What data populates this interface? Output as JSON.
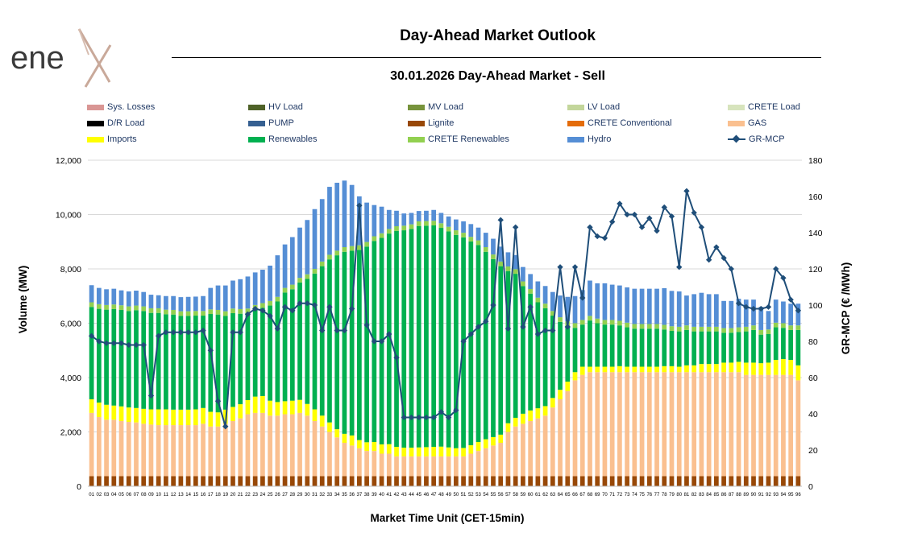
{
  "logo": {
    "text": "ene",
    "accent": "x"
  },
  "header": {
    "title": "Day-Ahead Market Outlook",
    "subtitle": "30.01.2026  Day-Ahead Market - Sell"
  },
  "chart_data": {
    "type": "bar",
    "stacked": true,
    "title": "Day-Ahead Market Outlook",
    "subtitle": "30.01.2026  Day-Ahead Market - Sell",
    "xlabel": "Market Time Unit (CET-15min)",
    "ylabel": "Volume (MW)",
    "y2label": "GR-MCP (€ /MWh)",
    "ylim": [
      0,
      12000
    ],
    "y2lim": [
      0,
      180
    ],
    "yticks": [
      0,
      2000,
      4000,
      6000,
      8000,
      10000,
      12000
    ],
    "y2ticks": [
      0,
      20,
      40,
      60,
      80,
      100,
      120,
      140,
      160,
      180
    ],
    "legend_position": "top",
    "categories": [
      "01",
      "02",
      "03",
      "04",
      "05",
      "06",
      "07",
      "08",
      "09",
      "10",
      "11",
      "12",
      "13",
      "14",
      "15",
      "16",
      "17",
      "18",
      "19",
      "20",
      "21",
      "22",
      "23",
      "24",
      "25",
      "26",
      "27",
      "28",
      "29",
      "30",
      "31",
      "32",
      "33",
      "34",
      "35",
      "36",
      "37",
      "38",
      "39",
      "40",
      "41",
      "42",
      "43",
      "44",
      "45",
      "46",
      "47",
      "48",
      "49",
      "50",
      "51",
      "52",
      "53",
      "54",
      "55",
      "56",
      "57",
      "58",
      "59",
      "60",
      "61",
      "62",
      "63",
      "64",
      "65",
      "66",
      "67",
      "68",
      "69",
      "70",
      "71",
      "72",
      "73",
      "74",
      "75",
      "76",
      "77",
      "78",
      "79",
      "80",
      "81",
      "82",
      "83",
      "84",
      "85",
      "86",
      "87",
      "88",
      "89",
      "90",
      "91",
      "92",
      "93",
      "94",
      "95",
      "96"
    ],
    "legend": [
      {
        "name": "Sys. Losses",
        "color": "#d99694",
        "kind": "bar"
      },
      {
        "name": "HV Load",
        "color": "#4f6228",
        "kind": "bar"
      },
      {
        "name": "MV Load",
        "color": "#77933c",
        "kind": "bar"
      },
      {
        "name": "LV Load",
        "color": "#c3d69b",
        "kind": "bar"
      },
      {
        "name": "CRETE Load",
        "color": "#d7e4bd",
        "kind": "bar"
      },
      {
        "name": "D/R Load",
        "color": "#000000",
        "kind": "bar"
      },
      {
        "name": "PUMP",
        "color": "#355f91",
        "kind": "bar"
      },
      {
        "name": "Lignite",
        "color": "#984807",
        "kind": "bar"
      },
      {
        "name": "CRETE Conventional",
        "color": "#e46c0a",
        "kind": "bar"
      },
      {
        "name": "GAS",
        "color": "#fac090",
        "kind": "bar"
      },
      {
        "name": "Imports",
        "color": "#ffff00",
        "kind": "bar"
      },
      {
        "name": "Renewables",
        "color": "#00b050",
        "kind": "bar"
      },
      {
        "name": "CRETE Renewables",
        "color": "#92d050",
        "kind": "bar"
      },
      {
        "name": "Hydro",
        "color": "#558ed5",
        "kind": "bar"
      },
      {
        "name": "GR-MCP",
        "color": "#1f4e79",
        "kind": "line"
      }
    ],
    "series": [
      {
        "name": "Lignite",
        "color": "#984807",
        "axis": "left",
        "values": [
          370,
          370,
          370,
          370,
          370,
          370,
          370,
          370,
          370,
          370,
          370,
          370,
          370,
          370,
          370,
          370,
          370,
          370,
          370,
          370,
          370,
          370,
          370,
          370,
          370,
          370,
          370,
          370,
          370,
          370,
          370,
          370,
          370,
          370,
          370,
          370,
          370,
          370,
          370,
          370,
          370,
          370,
          370,
          370,
          370,
          370,
          370,
          370,
          370,
          370,
          370,
          370,
          370,
          370,
          370,
          370,
          370,
          370,
          370,
          370,
          370,
          370,
          370,
          370,
          370,
          370,
          370,
          370,
          370,
          370,
          370,
          370,
          370,
          370,
          370,
          370,
          370,
          370,
          370,
          370,
          370,
          370,
          370,
          370,
          370,
          370,
          370,
          370,
          370,
          370,
          370,
          370,
          370,
          370,
          370,
          370
        ]
      },
      {
        "name": "GAS",
        "color": "#fac090",
        "axis": "left",
        "values": [
          2330,
          2180,
          2080,
          2080,
          2030,
          2000,
          1980,
          1930,
          1900,
          1880,
          1880,
          1880,
          1880,
          1880,
          1880,
          1930,
          1830,
          1830,
          1930,
          2030,
          2130,
          2280,
          2330,
          2330,
          2230,
          2230,
          2280,
          2280,
          2330,
          2230,
          2030,
          1830,
          1630,
          1430,
          1230,
          1130,
          1030,
          930,
          930,
          830,
          830,
          730,
          730,
          730,
          730,
          730,
          730,
          730,
          730,
          730,
          730,
          830,
          930,
          1030,
          1130,
          1230,
          1630,
          1830,
          1930,
          2030,
          2130,
          2230,
          2530,
          2830,
          3130,
          3530,
          3730,
          3830,
          3830,
          3830,
          3830,
          3830,
          3830,
          3830,
          3830,
          3830,
          3830,
          3830,
          3830,
          3830,
          3830,
          3830,
          3830,
          3830,
          3830,
          3830,
          3830,
          3830,
          3730,
          3730,
          3730,
          3730,
          3730,
          3730,
          3730,
          3530
        ]
      },
      {
        "name": "Imports",
        "color": "#ffff00",
        "axis": "left",
        "values": [
          500,
          530,
          550,
          520,
          540,
          530,
          530,
          550,
          560,
          580,
          580,
          570,
          570,
          570,
          580,
          580,
          540,
          520,
          520,
          520,
          520,
          520,
          600,
          620,
          550,
          500,
          480,
          500,
          480,
          430,
          430,
          400,
          350,
          300,
          330,
          370,
          300,
          320,
          330,
          340,
          350,
          350,
          320,
          320,
          330,
          340,
          350,
          360,
          330,
          300,
          310,
          310,
          330,
          330,
          310,
          300,
          320,
          320,
          370,
          390,
          370,
          350,
          350,
          350,
          350,
          300,
          300,
          200,
          200,
          200,
          200,
          220,
          200,
          200,
          200,
          200,
          200,
          220,
          220,
          200,
          250,
          250,
          300,
          300,
          300,
          350,
          350,
          380,
          450,
          450,
          430,
          450,
          550,
          580,
          550,
          550
        ]
      },
      {
        "name": "Renewables",
        "color": "#00b050",
        "axis": "left",
        "values": [
          3400,
          3450,
          3500,
          3550,
          3550,
          3550,
          3600,
          3600,
          3550,
          3550,
          3500,
          3500,
          3450,
          3450,
          3450,
          3400,
          3600,
          3600,
          3450,
          3450,
          3330,
          3200,
          3200,
          3250,
          3500,
          3700,
          4000,
          4100,
          4320,
          4600,
          5000,
          5500,
          6000,
          6400,
          6700,
          6800,
          7000,
          7200,
          7400,
          7600,
          7750,
          7950,
          8000,
          8050,
          8150,
          8150,
          8150,
          8050,
          7950,
          7850,
          7750,
          7500,
          7250,
          6900,
          6550,
          6200,
          5600,
          5300,
          4700,
          4300,
          3900,
          3600,
          3030,
          2500,
          2050,
          1630,
          1550,
          1700,
          1600,
          1550,
          1550,
          1500,
          1450,
          1400,
          1400,
          1400,
          1400,
          1350,
          1300,
          1300,
          1300,
          1250,
          1200,
          1200,
          1200,
          1100,
          1100,
          1100,
          1150,
          1200,
          1050,
          1050,
          1200,
          1150,
          1100,
          1300
        ]
      },
      {
        "name": "CRETE Renewables",
        "color": "#92d050",
        "axis": "left",
        "values": [
          170,
          170,
          170,
          170,
          170,
          170,
          170,
          170,
          170,
          170,
          170,
          170,
          170,
          170,
          170,
          170,
          170,
          170,
          170,
          170,
          170,
          170,
          170,
          170,
          170,
          170,
          170,
          170,
          170,
          170,
          170,
          170,
          170,
          170,
          170,
          170,
          170,
          170,
          170,
          170,
          170,
          170,
          170,
          170,
          170,
          170,
          170,
          170,
          170,
          170,
          170,
          170,
          170,
          170,
          170,
          170,
          170,
          170,
          170,
          170,
          170,
          170,
          170,
          170,
          170,
          170,
          170,
          170,
          170,
          170,
          170,
          170,
          170,
          170,
          170,
          170,
          170,
          170,
          170,
          170,
          170,
          170,
          170,
          170,
          170,
          170,
          170,
          170,
          170,
          170,
          170,
          170,
          170,
          170,
          170,
          170
        ]
      },
      {
        "name": "Hydro",
        "color": "#558ed5",
        "axis": "left",
        "values": [
          630,
          600,
          580,
          580,
          550,
          550,
          550,
          530,
          500,
          480,
          500,
          510,
          520,
          530,
          530,
          550,
          790,
          900,
          950,
          1030,
          1100,
          1180,
          1200,
          1230,
          1300,
          1530,
          1600,
          1750,
          1850,
          2000,
          2200,
          2300,
          2500,
          2500,
          2450,
          2250,
          1800,
          1450,
          1150,
          980,
          700,
          570,
          450,
          420,
          380,
          380,
          400,
          380,
          380,
          400,
          420,
          470,
          470,
          530,
          580,
          550,
          520,
          520,
          530,
          550,
          600,
          650,
          700,
          800,
          900,
          1000,
          1100,
          1300,
          1300,
          1350,
          1300,
          1300,
          1300,
          1300,
          1300,
          1300,
          1300,
          1350,
          1300,
          1300,
          1100,
          1200,
          1250,
          1200,
          1200,
          1000,
          1000,
          1050,
          1000,
          950,
          850,
          680,
          850,
          800,
          800,
          800
        ]
      },
      {
        "name": "GR-MCP",
        "color": "#1f4e79",
        "axis": "right",
        "kind": "line",
        "values": [
          83,
          80,
          79,
          79,
          79,
          78,
          78,
          78,
          50,
          83,
          85,
          85,
          85,
          85,
          85,
          86,
          75,
          47,
          33,
          85,
          85,
          95,
          98,
          97,
          94,
          87,
          99,
          97,
          101,
          101,
          100,
          86,
          99,
          86,
          86,
          98,
          155,
          89,
          80,
          80,
          84,
          71,
          38,
          38,
          38,
          38,
          38,
          41,
          38,
          42,
          80,
          84,
          88,
          91,
          100,
          147,
          87,
          143,
          88,
          99,
          84,
          86,
          86,
          121,
          88,
          121,
          104,
          143,
          138,
          137,
          146,
          156,
          150,
          150,
          143,
          148,
          141,
          154,
          149,
          121,
          163,
          151,
          143,
          125,
          132,
          126,
          120,
          101,
          99,
          98,
          98,
          99,
          120,
          115,
          103,
          97
        ]
      }
    ]
  }
}
